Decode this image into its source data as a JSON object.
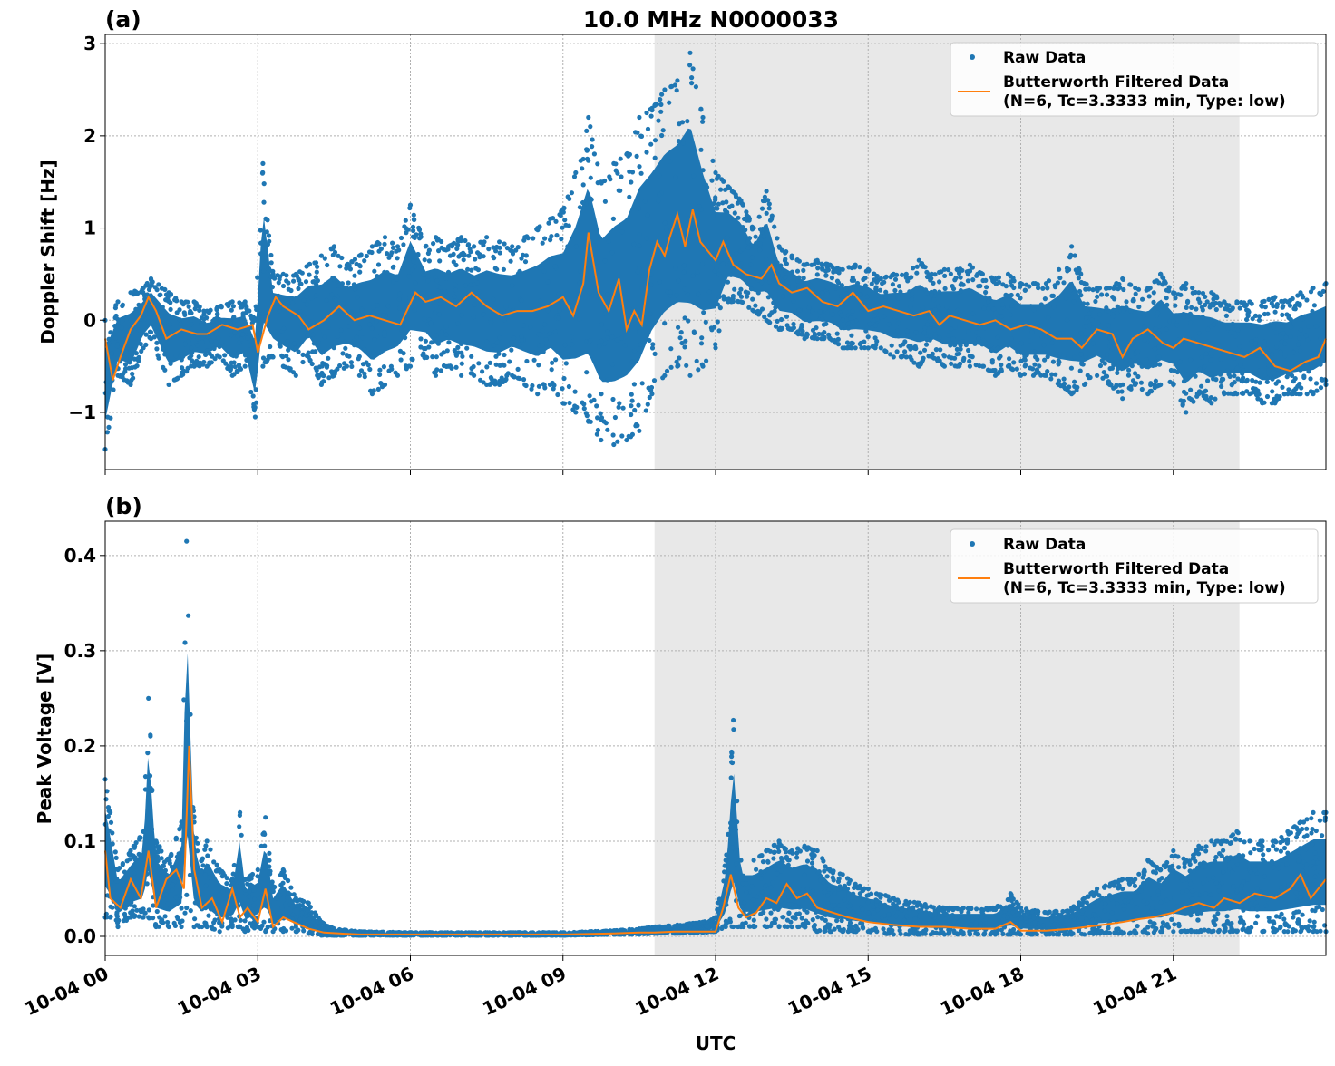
{
  "figure": {
    "title": "10.0 MHz N0000033",
    "xlabel": "UTC"
  },
  "colors": {
    "raw": "#1f77b4",
    "filtered": "#ff7f0e",
    "shade": "#e8e8e8",
    "grid": "#b0b0b0"
  },
  "legend": {
    "raw_label": "Raw Data",
    "filtered_label_line1": "Butterworth Filtered Data",
    "filtered_label_line2": "(N=6, Tc=3.3333 min, Type: low)"
  },
  "chart_data": [
    {
      "id": "a",
      "type": "scatter",
      "panel_label": "(a)",
      "ylabel": "Doppler Shift [Hz]",
      "xlim_hours": [
        0,
        24
      ],
      "ylim": [
        -1.62,
        3.1
      ],
      "yticks": [
        -1,
        0,
        1,
        2,
        3
      ],
      "ytick_labels": [
        "−1",
        "0",
        "1",
        "2",
        "3"
      ],
      "shaded_span_hours": [
        10.8,
        22.3
      ],
      "legend_position": "top-right",
      "grid": true,
      "series": [
        {
          "name": "Raw Data",
          "kind": "points",
          "x": [
            0,
            0.25,
            0.5,
            0.75,
            0.9,
            1.25,
            1.5,
            1.75,
            2,
            2.25,
            2.5,
            2.75,
            2.95,
            3.1,
            3.3,
            3.5,
            3.75,
            4,
            4.25,
            4.5,
            4.75,
            5,
            5.25,
            5.5,
            5.75,
            6,
            6.3,
            6.5,
            6.75,
            7,
            7.25,
            7.5,
            7.75,
            8,
            8.25,
            8.5,
            8.75,
            9,
            9.25,
            9.5,
            9.75,
            10,
            10.25,
            10.5,
            10.75,
            11,
            11.25,
            11.5,
            11.75,
            12,
            12.25,
            12.5,
            12.75,
            13,
            13.25,
            13.5,
            13.75,
            14,
            14.25,
            14.5,
            14.75,
            15,
            15.25,
            15.5,
            15.75,
            16,
            16.25,
            16.5,
            16.75,
            17,
            17.25,
            17.5,
            17.75,
            18,
            18.25,
            18.5,
            18.75,
            19,
            19.25,
            19.5,
            19.75,
            20,
            20.25,
            20.5,
            20.75,
            21,
            21.25,
            21.5,
            21.75,
            22,
            22.25,
            22.5,
            22.75,
            23,
            23.25,
            23.5,
            23.75,
            24
          ],
          "lo": [
            -1.4,
            -0.6,
            -0.7,
            -0.3,
            -0.2,
            -0.7,
            -0.6,
            -0.5,
            -0.5,
            -0.4,
            -0.6,
            -0.5,
            -1.05,
            -0.5,
            -0.4,
            -0.5,
            -0.6,
            -0.4,
            -0.7,
            -0.6,
            -0.5,
            -0.6,
            -0.8,
            -0.7,
            -0.6,
            -0.5,
            -0.4,
            -0.6,
            -0.5,
            -0.6,
            -0.6,
            -0.7,
            -0.7,
            -0.6,
            -0.7,
            -0.8,
            -0.7,
            -0.9,
            -1.0,
            -1.1,
            -1.3,
            -1.35,
            -1.3,
            -1.2,
            -0.8,
            -0.6,
            -0.5,
            -0.6,
            -0.5,
            -0.3,
            0.2,
            0.2,
            0.1,
            0.0,
            -0.1,
            -0.1,
            -0.2,
            -0.2,
            -0.2,
            -0.3,
            -0.3,
            -0.3,
            -0.3,
            -0.4,
            -0.4,
            -0.5,
            -0.4,
            -0.5,
            -0.5,
            -0.5,
            -0.5,
            -0.6,
            -0.5,
            -0.6,
            -0.6,
            -0.6,
            -0.7,
            -0.8,
            -0.7,
            -0.6,
            -0.7,
            -0.85,
            -0.7,
            -0.8,
            -0.7,
            -0.7,
            -1.0,
            -0.8,
            -0.9,
            -0.8,
            -0.8,
            -0.8,
            -0.9,
            -0.9,
            -0.8,
            -0.8,
            -0.8,
            -0.7
          ],
          "hi": [
            0.0,
            0.2,
            0.3,
            0.35,
            0.45,
            0.3,
            0.2,
            0.2,
            0.1,
            0.15,
            0.2,
            0.2,
            0.0,
            1.7,
            0.5,
            0.5,
            0.5,
            0.6,
            0.7,
            0.8,
            0.6,
            0.7,
            0.8,
            0.9,
            0.8,
            1.25,
            0.8,
            0.9,
            0.8,
            0.9,
            0.8,
            0.9,
            0.85,
            0.8,
            0.9,
            1.0,
            1.1,
            1.2,
            1.6,
            2.2,
            1.5,
            1.7,
            1.8,
            2.2,
            2.3,
            2.5,
            2.6,
            2.9,
            2.2,
            1.6,
            1.45,
            1.3,
            1.0,
            1.4,
            0.8,
            0.7,
            0.6,
            0.65,
            0.6,
            0.55,
            0.6,
            0.55,
            0.45,
            0.5,
            0.5,
            0.65,
            0.5,
            0.55,
            0.55,
            0.6,
            0.5,
            0.45,
            0.5,
            0.4,
            0.4,
            0.4,
            0.55,
            0.8,
            0.4,
            0.35,
            0.35,
            0.45,
            0.35,
            0.35,
            0.5,
            0.3,
            0.4,
            0.3,
            0.3,
            0.2,
            0.2,
            0.2,
            0.2,
            0.25,
            0.2,
            0.3,
            0.35,
            0.4
          ]
        },
        {
          "name": "Butterworth Filtered Data (N=6, Tc=3.3333 min, Type: low)",
          "kind": "line",
          "x": [
            0,
            0.15,
            0.3,
            0.5,
            0.7,
            0.85,
            1.0,
            1.2,
            1.5,
            1.8,
            2.0,
            2.3,
            2.6,
            2.9,
            3.0,
            3.2,
            3.35,
            3.5,
            3.8,
            4.0,
            4.3,
            4.6,
            4.9,
            5.2,
            5.5,
            5.8,
            6.1,
            6.3,
            6.6,
            6.9,
            7.2,
            7.5,
            7.8,
            8.1,
            8.4,
            8.7,
            9.0,
            9.2,
            9.4,
            9.5,
            9.7,
            9.9,
            10.1,
            10.25,
            10.4,
            10.55,
            10.7,
            10.85,
            11.0,
            11.1,
            11.25,
            11.4,
            11.55,
            11.7,
            11.85,
            12.0,
            12.15,
            12.35,
            12.6,
            12.9,
            13.1,
            13.25,
            13.5,
            13.8,
            14.1,
            14.4,
            14.7,
            15.0,
            15.3,
            15.6,
            15.9,
            16.2,
            16.4,
            16.6,
            16.9,
            17.2,
            17.5,
            17.8,
            18.1,
            18.4,
            18.7,
            19.0,
            19.2,
            19.5,
            19.8,
            20.0,
            20.2,
            20.5,
            20.8,
            21.0,
            21.2,
            21.5,
            21.8,
            22.1,
            22.4,
            22.7,
            23.0,
            23.3,
            23.6,
            23.85,
            24.0
          ],
          "y": [
            -0.2,
            -0.65,
            -0.4,
            -0.1,
            0.05,
            0.25,
            0.1,
            -0.2,
            -0.1,
            -0.15,
            -0.15,
            -0.05,
            -0.1,
            -0.05,
            -0.35,
            0.05,
            0.25,
            0.15,
            0.05,
            -0.1,
            0.0,
            0.15,
            0.0,
            0.05,
            0.0,
            -0.05,
            0.3,
            0.2,
            0.25,
            0.15,
            0.3,
            0.15,
            0.05,
            0.1,
            0.1,
            0.15,
            0.25,
            0.05,
            0.4,
            0.95,
            0.3,
            0.1,
            0.45,
            -0.1,
            0.1,
            -0.05,
            0.55,
            0.85,
            0.7,
            0.9,
            1.15,
            0.8,
            1.2,
            0.85,
            0.75,
            0.65,
            0.85,
            0.6,
            0.5,
            0.45,
            0.6,
            0.4,
            0.3,
            0.35,
            0.2,
            0.15,
            0.3,
            0.1,
            0.15,
            0.1,
            0.05,
            0.1,
            -0.05,
            0.05,
            0.0,
            -0.05,
            0.0,
            -0.1,
            -0.05,
            -0.1,
            -0.2,
            -0.2,
            -0.3,
            -0.1,
            -0.15,
            -0.4,
            -0.2,
            -0.1,
            -0.25,
            -0.3,
            -0.2,
            -0.25,
            -0.3,
            -0.35,
            -0.4,
            -0.3,
            -0.5,
            -0.55,
            -0.45,
            -0.4,
            -0.2
          ]
        }
      ]
    },
    {
      "id": "b",
      "type": "scatter",
      "panel_label": "(b)",
      "ylabel": "Peak Voltage [V]",
      "xlim_hours": [
        0,
        24
      ],
      "ylim": [
        -0.02,
        0.436
      ],
      "yticks": [
        0.0,
        0.1,
        0.2,
        0.3,
        0.4
      ],
      "ytick_labels": [
        "0.0",
        "0.1",
        "0.2",
        "0.3",
        "0.4"
      ],
      "xtick_hours": [
        0,
        3,
        6,
        9,
        12,
        15,
        18,
        21
      ],
      "xtick_labels": [
        "10-04 00",
        "10-04 03",
        "10-04 06",
        "10-04 09",
        "10-04 12",
        "10-04 15",
        "10-04 18",
        "10-04 21"
      ],
      "shaded_span_hours": [
        10.8,
        22.3
      ],
      "legend_position": "top-right",
      "grid": true,
      "series": [
        {
          "name": "Raw Data",
          "kind": "points",
          "x": [
            0,
            0.1,
            0.25,
            0.5,
            0.75,
            0.85,
            1.0,
            1.25,
            1.5,
            1.6,
            1.75,
            1.9,
            2.0,
            2.25,
            2.5,
            2.65,
            2.75,
            3.0,
            3.15,
            3.3,
            3.5,
            3.75,
            4.0,
            4.25,
            4.5,
            5,
            6,
            7,
            8,
            9,
            10,
            10.5,
            10.8,
            11.25,
            11.75,
            12.0,
            12.2,
            12.35,
            12.5,
            12.75,
            13.0,
            13.25,
            13.5,
            13.75,
            14.0,
            14.25,
            14.5,
            14.75,
            15.0,
            15.5,
            16.0,
            16.5,
            17.0,
            17.5,
            17.8,
            18.0,
            18.5,
            19.0,
            19.25,
            19.5,
            20.0,
            20.25,
            20.5,
            20.75,
            21.0,
            21.25,
            21.5,
            21.75,
            22.0,
            22.25,
            22.5,
            22.75,
            23.0,
            23.25,
            23.5,
            23.75,
            24.0
          ],
          "lo": [
            0.02,
            0.02,
            0.01,
            0.02,
            0.02,
            0.02,
            0.01,
            0.01,
            0.01,
            0.03,
            0.01,
            0.01,
            0.01,
            0.005,
            0.01,
            0.01,
            0.005,
            0.01,
            0.005,
            0.005,
            0.005,
            0.005,
            0.003,
            0.001,
            0.001,
            0.001,
            0.001,
            0.001,
            0.001,
            0.001,
            0.002,
            0.002,
            0.003,
            0.003,
            0.004,
            0.005,
            0.01,
            0.01,
            0.01,
            0.01,
            0.01,
            0.01,
            0.01,
            0.01,
            0.005,
            0.005,
            0.005,
            0.005,
            0.005,
            0.002,
            0.002,
            0.002,
            0.002,
            0.002,
            0.002,
            0.002,
            0.002,
            0.002,
            0.002,
            0.003,
            0.003,
            0.003,
            0.003,
            0.005,
            0.005,
            0.005,
            0.005,
            0.005,
            0.005,
            0.005,
            0.005,
            0.005,
            0.005,
            0.005,
            0.005,
            0.005,
            0.005
          ],
          "hi": [
            0.165,
            0.13,
            0.07,
            0.09,
            0.11,
            0.25,
            0.1,
            0.08,
            0.12,
            0.415,
            0.12,
            0.08,
            0.1,
            0.07,
            0.06,
            0.13,
            0.06,
            0.07,
            0.125,
            0.05,
            0.07,
            0.04,
            0.035,
            0.015,
            0.008,
            0.005,
            0.004,
            0.004,
            0.004,
            0.004,
            0.006,
            0.008,
            0.01,
            0.012,
            0.015,
            0.02,
            0.08,
            0.227,
            0.08,
            0.08,
            0.09,
            0.1,
            0.09,
            0.095,
            0.09,
            0.07,
            0.065,
            0.055,
            0.05,
            0.04,
            0.035,
            0.03,
            0.03,
            0.03,
            0.045,
            0.03,
            0.025,
            0.03,
            0.04,
            0.05,
            0.06,
            0.06,
            0.08,
            0.07,
            0.09,
            0.08,
            0.095,
            0.1,
            0.1,
            0.11,
            0.1,
            0.1,
            0.1,
            0.11,
            0.12,
            0.13,
            0.13
          ]
        },
        {
          "name": "Butterworth Filtered Data (N=6, Tc=3.3333 min, Type: low)",
          "kind": "line",
          "x": [
            0,
            0.1,
            0.3,
            0.5,
            0.7,
            0.85,
            1.0,
            1.2,
            1.4,
            1.55,
            1.65,
            1.75,
            1.9,
            2.1,
            2.3,
            2.5,
            2.65,
            2.8,
            3.0,
            3.15,
            3.3,
            3.5,
            3.7,
            4.0,
            4.3,
            4.6,
            5,
            6,
            7,
            8,
            9,
            10,
            10.5,
            10.8,
            11.2,
            11.6,
            12.0,
            12.15,
            12.3,
            12.45,
            12.6,
            12.8,
            13.0,
            13.2,
            13.4,
            13.6,
            13.8,
            14.0,
            14.3,
            14.6,
            15.0,
            15.5,
            16.0,
            16.5,
            17.0,
            17.5,
            17.8,
            18.0,
            18.5,
            19.0,
            19.3,
            19.6,
            20.0,
            20.3,
            20.6,
            21.0,
            21.2,
            21.5,
            21.8,
            22.0,
            22.3,
            22.6,
            23.0,
            23.3,
            23.5,
            23.7,
            24.0
          ],
          "y": [
            0.09,
            0.04,
            0.03,
            0.06,
            0.04,
            0.09,
            0.03,
            0.06,
            0.07,
            0.05,
            0.2,
            0.07,
            0.03,
            0.04,
            0.015,
            0.05,
            0.02,
            0.03,
            0.015,
            0.05,
            0.01,
            0.02,
            0.015,
            0.008,
            0.004,
            0.003,
            0.002,
            0.002,
            0.002,
            0.002,
            0.002,
            0.003,
            0.004,
            0.004,
            0.005,
            0.005,
            0.005,
            0.03,
            0.065,
            0.03,
            0.02,
            0.025,
            0.04,
            0.035,
            0.055,
            0.04,
            0.045,
            0.03,
            0.025,
            0.02,
            0.015,
            0.012,
            0.01,
            0.01,
            0.008,
            0.008,
            0.015,
            0.006,
            0.006,
            0.008,
            0.01,
            0.012,
            0.015,
            0.018,
            0.02,
            0.025,
            0.03,
            0.035,
            0.03,
            0.04,
            0.035,
            0.045,
            0.04,
            0.05,
            0.065,
            0.04,
            0.06
          ]
        }
      ]
    }
  ]
}
